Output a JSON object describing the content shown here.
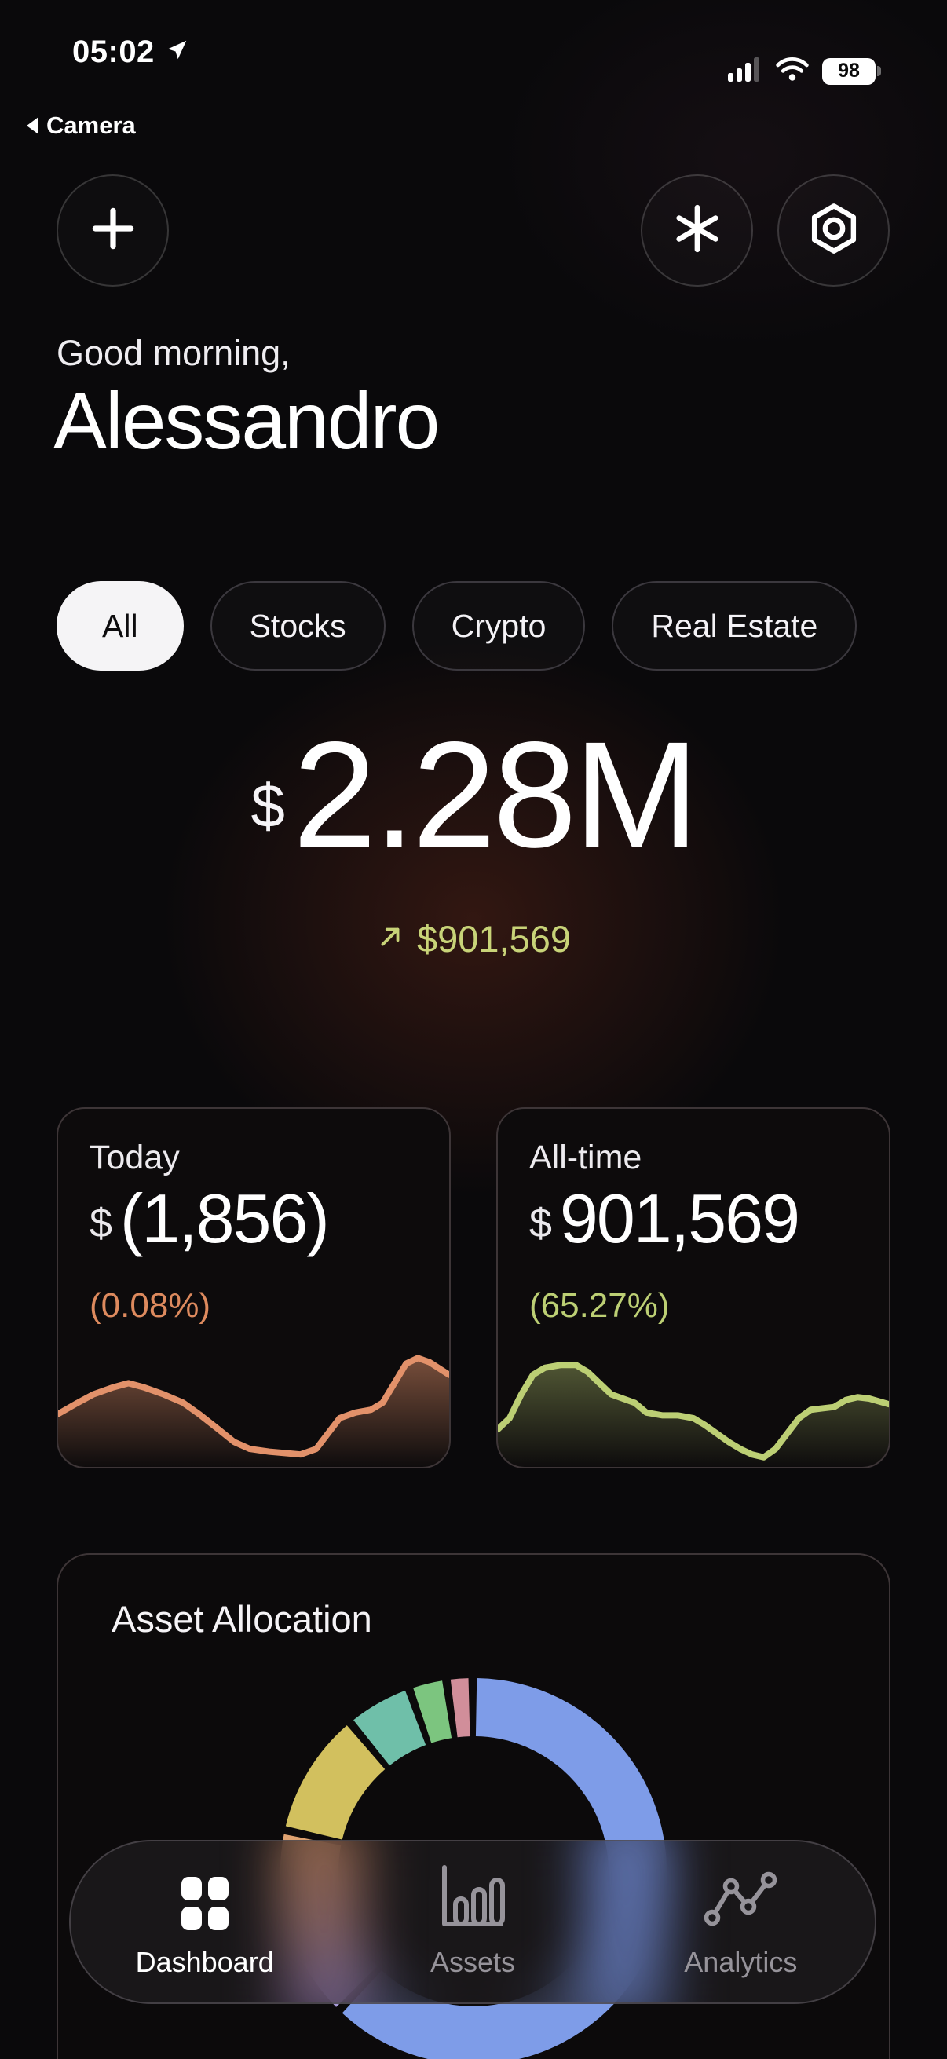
{
  "status_bar": {
    "time": "05:02",
    "back_app_label": "Camera",
    "battery_percent": "98"
  },
  "header": {
    "greeting": "Good morning,",
    "name": "Alessandro"
  },
  "chips": {
    "items": [
      {
        "label": "All",
        "selected": true
      },
      {
        "label": "Stocks",
        "selected": false
      },
      {
        "label": "Crypto",
        "selected": false
      },
      {
        "label": "Real Estate",
        "selected": false
      }
    ]
  },
  "balance": {
    "currency": "$",
    "amount": "2.28M",
    "change_amount": "$901,569",
    "change_color": "#c8d378"
  },
  "summary_cards": {
    "today": {
      "label": "Today",
      "currency": "$",
      "value": "(1,856)",
      "percent": "(0.08%)",
      "percent_color": "#dd8a5e"
    },
    "all_time": {
      "label": "All-time",
      "currency": "$",
      "value": "901,569",
      "percent": "(65.27%)",
      "percent_color": "#bccf74"
    }
  },
  "allocation": {
    "title": "Asset Allocation"
  },
  "nav": {
    "items": [
      {
        "label": "Dashboard",
        "icon": "dashboard-grid-icon",
        "active": true
      },
      {
        "label": "Assets",
        "icon": "assets-bars-icon",
        "active": false
      },
      {
        "label": "Analytics",
        "icon": "analytics-line-icon",
        "active": false
      }
    ]
  },
  "chart_data": [
    {
      "type": "area",
      "name": "today-sparkline",
      "color": "#e2916a",
      "fill_opacity": 0.5,
      "points": [
        [
          0,
          39
        ],
        [
          5,
          47
        ],
        [
          9,
          53
        ],
        [
          14,
          58
        ],
        [
          18,
          61
        ],
        [
          22,
          58
        ],
        [
          27,
          53
        ],
        [
          32,
          47
        ],
        [
          36,
          39
        ],
        [
          41,
          28
        ],
        [
          45,
          19
        ],
        [
          49,
          14
        ],
        [
          54,
          12
        ],
        [
          58,
          11
        ],
        [
          62,
          10
        ],
        [
          66,
          14
        ],
        [
          69,
          25
        ],
        [
          72,
          36
        ],
        [
          76,
          40
        ],
        [
          80,
          42
        ],
        [
          83,
          47
        ],
        [
          86,
          61
        ],
        [
          89,
          75
        ],
        [
          92,
          79
        ],
        [
          95,
          76
        ],
        [
          100,
          67
        ]
      ]
    },
    {
      "type": "area",
      "name": "alltime-sparkline",
      "color": "#bccf74",
      "fill_opacity": 0.38,
      "points": [
        [
          0,
          28
        ],
        [
          3,
          36
        ],
        [
          6,
          53
        ],
        [
          9,
          67
        ],
        [
          12,
          72
        ],
        [
          16,
          74
        ],
        [
          20,
          74
        ],
        [
          23,
          69
        ],
        [
          26,
          61
        ],
        [
          29,
          53
        ],
        [
          32,
          50
        ],
        [
          35,
          47
        ],
        [
          38,
          40
        ],
        [
          42,
          38
        ],
        [
          46,
          38
        ],
        [
          50,
          36
        ],
        [
          53,
          31
        ],
        [
          56,
          25
        ],
        [
          59,
          19
        ],
        [
          62,
          14
        ],
        [
          65,
          10
        ],
        [
          68,
          8
        ],
        [
          71,
          14
        ],
        [
          74,
          25
        ],
        [
          77,
          36
        ],
        [
          80,
          42
        ],
        [
          83,
          43
        ],
        [
          86,
          44
        ],
        [
          89,
          49
        ],
        [
          92,
          51
        ],
        [
          95,
          50
        ],
        [
          100,
          46
        ]
      ]
    },
    {
      "type": "donut",
      "name": "asset-allocation-donut",
      "title": "Asset Allocation",
      "clockwise_from_top": true,
      "start_angle_deg": 1,
      "gap_deg": 2.5,
      "segments": [
        {
          "color": "#7e9ce8",
          "percent": 62.5
        },
        {
          "color": "#a89ad8",
          "percent": 4.5
        },
        {
          "color": "#dfa271",
          "percent": 10.5
        },
        {
          "color": "#d2c05e",
          "percent": 10.0
        },
        {
          "color": "#6fbfa9",
          "percent": 5.0
        },
        {
          "color": "#7cc57f",
          "percent": 2.5
        },
        {
          "color": "#d18e9a",
          "percent": 1.5
        }
      ]
    }
  ]
}
